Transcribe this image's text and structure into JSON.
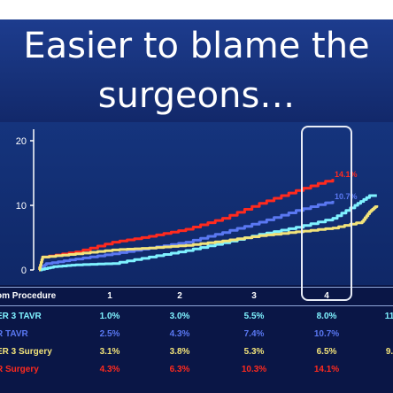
{
  "slide": {
    "title_line1": "Easier to blame the",
    "title_line2": "surgeons…"
  },
  "colors": {
    "red": "#ff2a1e",
    "blue": "#5a78f2",
    "cyan": "#7ff2ff",
    "yellow": "#f2e37a",
    "axis": "#ffffff"
  },
  "chart_data": {
    "type": "line",
    "yticks": [
      "20",
      "10",
      "0"
    ],
    "ylim": [
      0,
      20
    ],
    "xlim": [
      0,
      4.6
    ],
    "series": [
      {
        "key": "red",
        "color": "#ff2a1e",
        "end_label": "14.1%",
        "points": [
          [
            0,
            0
          ],
          [
            0.05,
            2.0
          ],
          [
            0.5,
            2.8
          ],
          [
            1,
            4.3
          ],
          [
            1.5,
            5.2
          ],
          [
            2,
            6.3
          ],
          [
            2.5,
            8.0
          ],
          [
            3,
            10.3
          ],
          [
            3.5,
            12.3
          ],
          [
            4,
            14.1
          ]
        ]
      },
      {
        "key": "blue",
        "color": "#5a78f2",
        "end_label": "10.7%",
        "points": [
          [
            0,
            0
          ],
          [
            0.1,
            1.0
          ],
          [
            0.5,
            1.7
          ],
          [
            1,
            2.5
          ],
          [
            1.5,
            3.4
          ],
          [
            2,
            4.3
          ],
          [
            2.5,
            5.8
          ],
          [
            3,
            7.4
          ],
          [
            3.5,
            9.2
          ],
          [
            4,
            10.7
          ]
        ]
      },
      {
        "key": "cyan",
        "color": "#7ff2ff",
        "end_label": "",
        "points": [
          [
            0,
            0
          ],
          [
            0.2,
            0.5
          ],
          [
            0.5,
            0.8
          ],
          [
            1,
            1.0
          ],
          [
            1.5,
            2.0
          ],
          [
            2,
            3.0
          ],
          [
            2.5,
            4.2
          ],
          [
            3,
            5.5
          ],
          [
            3.5,
            6.6
          ],
          [
            4,
            8.0
          ],
          [
            4.3,
            10.0
          ],
          [
            4.5,
            11.5
          ],
          [
            4.6,
            11.5
          ]
        ]
      },
      {
        "key": "yellow",
        "color": "#f2e37a",
        "end_label": "",
        "points": [
          [
            0,
            0
          ],
          [
            0.05,
            2.0
          ],
          [
            0.5,
            2.5
          ],
          [
            1,
            3.1
          ],
          [
            1.5,
            3.4
          ],
          [
            2,
            3.8
          ],
          [
            2.5,
            4.5
          ],
          [
            3,
            5.3
          ],
          [
            3.5,
            5.9
          ],
          [
            4,
            6.5
          ],
          [
            4.4,
            7.5
          ],
          [
            4.5,
            9.0
          ],
          [
            4.6,
            10.0
          ]
        ]
      }
    ]
  },
  "table": {
    "header": {
      "label": "om Procedure",
      "cols": [
        "1",
        "2",
        "3",
        "4"
      ]
    },
    "rows": [
      {
        "label": "ER 3 TAVR",
        "color": "#7ff2ff",
        "values": [
          "1.0%",
          "3.0%",
          "5.5%",
          "8.0%",
          "11"
        ]
      },
      {
        "label": "R TAVR",
        "color": "#5a78f2",
        "values": [
          "2.5%",
          "4.3%",
          "7.4%",
          "10.7%"
        ]
      },
      {
        "label": "ER 3 Surgery",
        "color": "#f2e37a",
        "values": [
          "3.1%",
          "3.8%",
          "5.3%",
          "6.5%",
          "9."
        ]
      },
      {
        "label": "R Surgery",
        "color": "#ff2a1e",
        "values": [
          "4.3%",
          "6.3%",
          "10.3%",
          "14.1%"
        ]
      }
    ]
  }
}
